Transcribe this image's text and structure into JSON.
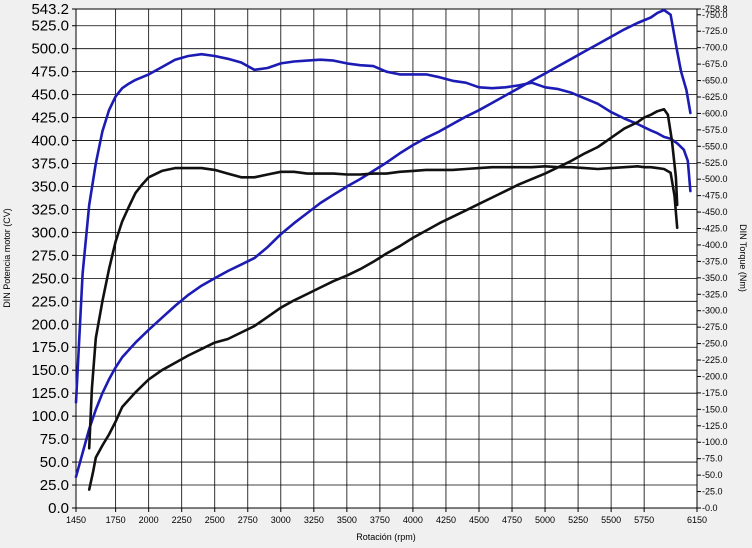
{
  "chart_data": {
    "type": "line",
    "xlabel": "Rotación (rpm)",
    "ylabel": "DIN Potencia motor (CV)",
    "y2label": "DIN Torque (Nm)",
    "xlim": [
      1450,
      6150
    ],
    "ylim": [
      0,
      543.2
    ],
    "y2lim": [
      0,
      758.8
    ],
    "grid": true,
    "x_ticks": [
      "1450",
      "1750",
      "2000",
      "2250",
      "2500",
      "2750",
      "3000",
      "3250",
      "3500",
      "3750",
      "4000",
      "4250",
      "4500",
      "4750",
      "5000",
      "5250",
      "5500",
      "5750",
      "6150"
    ],
    "y_ticks": [
      "543.2",
      "525.0",
      "500.0",
      "475.0",
      "450.0",
      "425.0",
      "400.0",
      "375.0",
      "350.0",
      "325.0",
      "300.0",
      "275.0",
      "250.0",
      "225.0",
      "200.0",
      "175.0",
      "150.0",
      "125.0",
      "100.0",
      "75.0",
      "50.0",
      "25.0",
      "0.0"
    ],
    "y2_ticks": [
      "758.8",
      "750.0",
      "725.0",
      "700.0",
      "675.0",
      "650.0",
      "625.0",
      "600.0",
      "575.0",
      "550.0",
      "525.0",
      "500.0",
      "475.0",
      "450.0",
      "425.0",
      "400.0",
      "375.0",
      "350.0",
      "325.0",
      "300.0",
      "275.0",
      "250.0",
      "225.0",
      "200.0",
      "175.0",
      "150.0",
      "125.0",
      "100.0",
      "75.0",
      "50.0",
      "25.0",
      "0.0"
    ],
    "series": [
      {
        "color": "#1c1cb4",
        "axis": "left",
        "x": [
          1450,
          1500,
          1550,
          1600,
          1650,
          1700,
          1750,
          1800,
          1900,
          2000,
          2100,
          2200,
          2300,
          2400,
          2500,
          2600,
          2700,
          2800,
          2900,
          3000,
          3100,
          3200,
          3300,
          3400,
          3500,
          3600,
          3700,
          3800,
          3900,
          4000,
          4100,
          4200,
          4300,
          4400,
          4500,
          4600,
          4700,
          4800,
          4900,
          5000,
          5100,
          5200,
          5300,
          5400,
          5500,
          5600,
          5700,
          5800,
          5850,
          5900,
          5950,
          6000,
          6030,
          6070,
          6100
        ],
        "y": [
          34,
          60,
          86,
          107,
          125,
          140,
          153,
          164,
          180,
          194,
          207,
          220,
          232,
          242,
          250,
          258,
          265,
          272,
          284,
          298,
          310,
          321,
          332,
          341,
          350,
          358,
          367,
          376,
          386,
          395,
          403,
          410,
          418,
          426,
          433,
          441,
          449,
          457,
          465,
          473,
          481,
          489,
          497,
          505,
          513,
          521,
          528,
          534,
          539,
          542,
          537,
          497,
          475,
          455,
          430
        ]
      },
      {
        "color": "#1c1cb4",
        "axis": "left",
        "x": [
          1450,
          1500,
          1550,
          1600,
          1650,
          1700,
          1750,
          1800,
          1850,
          1900,
          2000,
          2100,
          2200,
          2300,
          2400,
          2500,
          2600,
          2700,
          2800,
          2900,
          3000,
          3100,
          3200,
          3300,
          3400,
          3500,
          3600,
          3700,
          3800,
          3900,
          4000,
          4100,
          4200,
          4300,
          4400,
          4500,
          4600,
          4700,
          4800,
          4900,
          5000,
          5100,
          5200,
          5300,
          5400,
          5500,
          5600,
          5700,
          5800,
          5850,
          5900,
          5950,
          6000,
          6050,
          6080,
          6100
        ],
        "y": [
          115,
          255,
          330,
          375,
          410,
          433,
          448,
          457,
          462,
          466,
          472,
          480,
          488,
          492,
          494,
          492,
          489,
          485,
          477,
          479,
          484,
          486,
          487,
          488,
          487,
          484,
          482,
          481,
          475,
          472,
          472,
          472,
          469,
          465,
          463,
          458,
          457,
          458,
          460,
          463,
          458,
          456,
          452,
          446,
          440,
          431,
          424,
          418,
          411,
          408,
          404,
          402,
          397,
          390,
          378,
          345
        ]
      },
      {
        "color": "#111111",
        "axis": "left",
        "x": [
          1550,
          1580,
          1600,
          1650,
          1700,
          1750,
          1800,
          1900,
          2000,
          2100,
          2200,
          2300,
          2400,
          2500,
          2600,
          2700,
          2800,
          2900,
          3000,
          3100,
          3200,
          3300,
          3400,
          3500,
          3600,
          3700,
          3800,
          3900,
          4000,
          4100,
          4200,
          4300,
          4400,
          4500,
          4600,
          4700,
          4800,
          4900,
          5000,
          5100,
          5200,
          5300,
          5400,
          5500,
          5600,
          5700,
          5750,
          5800,
          5850,
          5900,
          5930,
          5960,
          5990,
          6000
        ],
        "y": [
          20,
          40,
          55,
          68,
          80,
          94,
          110,
          126,
          140,
          150,
          158,
          166,
          173,
          180,
          184,
          191,
          198,
          208,
          218,
          226,
          233,
          240,
          247,
          253,
          260,
          268,
          277,
          285,
          294,
          302,
          310,
          317,
          324,
          331,
          338,
          345,
          352,
          358,
          364,
          371,
          378,
          386,
          393,
          403,
          413,
          420,
          425,
          428,
          432,
          434,
          428,
          400,
          360,
          330
        ]
      },
      {
        "color": "#111111",
        "axis": "left",
        "x": [
          1550,
          1570,
          1600,
          1650,
          1700,
          1750,
          1800,
          1850,
          1900,
          1950,
          2000,
          2100,
          2200,
          2300,
          2400,
          2500,
          2600,
          2700,
          2800,
          2900,
          3000,
          3100,
          3200,
          3300,
          3400,
          3500,
          3600,
          3700,
          3800,
          3900,
          4000,
          4100,
          4200,
          4300,
          4400,
          4500,
          4600,
          4700,
          4800,
          4900,
          5000,
          5100,
          5200,
          5300,
          5400,
          5500,
          5600,
          5700,
          5750,
          5800,
          5850,
          5900,
          5950,
          5980,
          6000
        ],
        "y": [
          65,
          130,
          185,
          225,
          260,
          290,
          312,
          328,
          343,
          352,
          360,
          367,
          370,
          370,
          370,
          368,
          364,
          360,
          360,
          363,
          366,
          366,
          364,
          364,
          364,
          363,
          363,
          364,
          364,
          366,
          367,
          368,
          368,
          368,
          369,
          370,
          371,
          371,
          371,
          371,
          372,
          371,
          371,
          370,
          369,
          370,
          371,
          372,
          371,
          371,
          370,
          369,
          365,
          340,
          305
        ]
      }
    ]
  }
}
